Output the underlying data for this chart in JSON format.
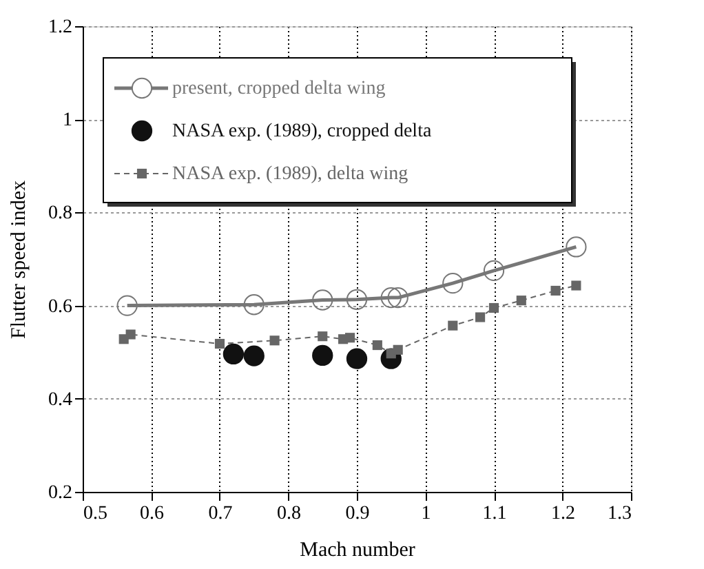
{
  "chart_data": {
    "type": "line",
    "xlabel": "Mach number",
    "ylabel": "Flutter speed index",
    "xlim": [
      0.5,
      1.3
    ],
    "xticks": [
      0.5,
      0.6,
      0.7,
      0.8,
      0.9,
      {
        "value": 1,
        "label": "1"
      },
      1.1,
      1.2,
      1.3
    ],
    "ylim": [
      0.2,
      1.2
    ],
    "yticks": [
      0.2,
      0.4,
      0.6,
      0.8,
      {
        "value": 1,
        "label": "1"
      },
      1.2
    ],
    "grid": true,
    "legend": "top left",
    "series": [
      {
        "name": "present, cropped delta wing",
        "color": "#777777",
        "marker": "circle",
        "line_style": "solid",
        "x": [
          0.565,
          0.75,
          0.85,
          0.9,
          0.95,
          0.96,
          1.04,
          1.1,
          1.22
        ],
        "values": [
          0.6,
          0.602,
          0.612,
          0.613,
          0.617,
          0.617,
          0.648,
          0.675,
          0.726
        ]
      },
      {
        "name": "NASA exp. (1989), cropped delta",
        "type": "scatter",
        "color": "#111111",
        "marker": "circle",
        "x": [
          0.72,
          0.75,
          0.85,
          0.9,
          0.95
        ],
        "values": [
          0.496,
          0.492,
          0.493,
          0.486,
          0.486
        ]
      },
      {
        "name": "NASA exp. (1989), delta wing",
        "color": "#666666",
        "marker": "square",
        "line_style": "dashed",
        "x": [
          0.56,
          0.57,
          0.7,
          0.78,
          0.85,
          0.88,
          0.89,
          0.93,
          0.95,
          0.96,
          1.04,
          1.08,
          1.1,
          1.14,
          1.19,
          1.22
        ],
        "values": [
          0.528,
          0.538,
          0.518,
          0.525,
          0.534,
          0.528,
          0.531,
          0.515,
          0.497,
          0.505,
          0.557,
          0.575,
          0.595,
          0.611,
          0.632,
          0.643
        ]
      }
    ]
  }
}
